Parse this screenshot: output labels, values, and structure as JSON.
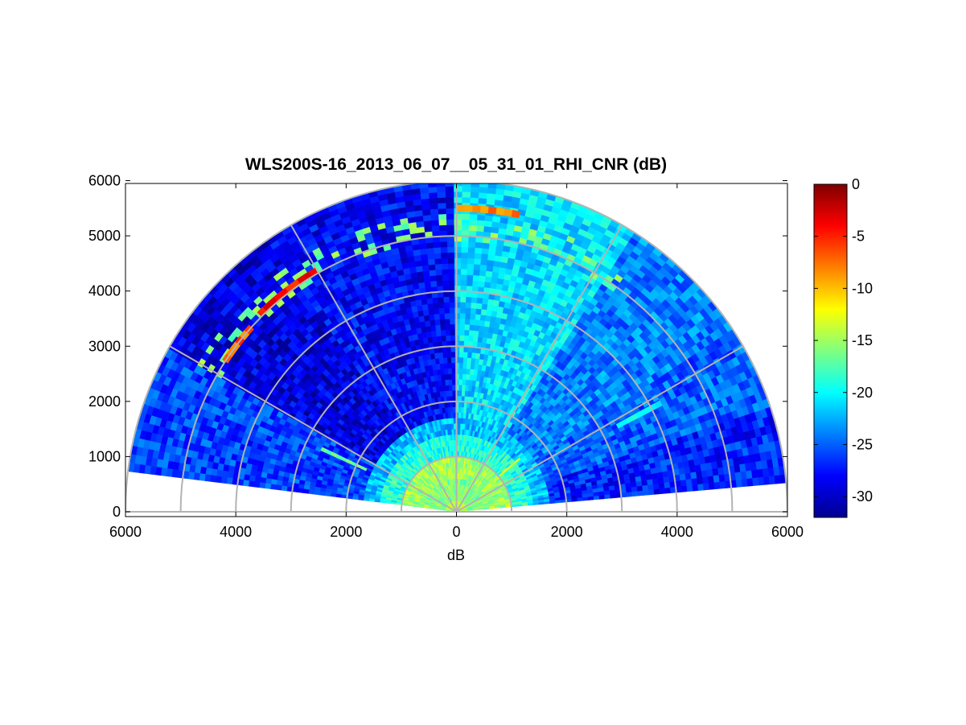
{
  "chart_data": {
    "type": "heatmap",
    "title": "WLS200S-16_2013_06_07__05_31_01_RHI_CNR (dB)",
    "xlabel": "dB",
    "ylabel": "",
    "xlim": [
      -6000,
      6000
    ],
    "ylim": [
      0,
      6000
    ],
    "x_ticks": [
      "6000",
      "4000",
      "2000",
      "0",
      "2000",
      "4000",
      "6000"
    ],
    "x_tick_values": [
      -6000,
      -4000,
      -2000,
      0,
      2000,
      4000,
      6000
    ],
    "y_ticks": [
      "0",
      "1000",
      "2000",
      "3000",
      "4000",
      "5000",
      "6000"
    ],
    "y_tick_values": [
      0,
      1000,
      2000,
      3000,
      4000,
      5000,
      6000
    ],
    "range_max": 6000,
    "range_rings": [
      1000,
      2000,
      3000,
      4000,
      5000,
      6000
    ],
    "spokes_deg": [
      0,
      30,
      60,
      90,
      120,
      150,
      180
    ],
    "elevation_scan_deg": [
      5,
      173
    ],
    "colormap": "jet",
    "colorbar": {
      "min": -32,
      "max": 0,
      "ticks": [
        "0",
        "-5",
        "-10",
        "-15",
        "-20",
        "-25",
        "-30"
      ],
      "tick_values": [
        0,
        -5,
        -10,
        -15,
        -20,
        -25,
        -30
      ]
    },
    "grid": true,
    "sectors": [
      {
        "from_deg": 5,
        "to_deg": 19,
        "cnr_db": -27
      },
      {
        "from_deg": 19,
        "to_deg": 33,
        "cnr_db": -25
      },
      {
        "from_deg": 33,
        "to_deg": 58,
        "cnr_db": -24
      },
      {
        "from_deg": 58,
        "to_deg": 90,
        "cnr_db": -21
      },
      {
        "from_deg": 90,
        "to_deg": 125,
        "cnr_db": -28
      },
      {
        "from_deg": 125,
        "to_deg": 150,
        "cnr_db": -29
      },
      {
        "from_deg": 150,
        "to_deg": 173,
        "cnr_db": -26
      }
    ],
    "near_field": [
      {
        "max_range": 200,
        "cnr_db": -14
      },
      {
        "max_range": 600,
        "cnr_db": -16
      },
      {
        "max_range": 1000,
        "cnr_db": -15
      },
      {
        "max_range": 1350,
        "cnr_db": -19
      },
      {
        "max_range": 1700,
        "cnr_db": -22
      }
    ],
    "cloud_layer": {
      "from_deg": 55,
      "to_deg": 150,
      "min_range": 4950,
      "max_range": 5350,
      "cnr_db": -6
    },
    "band_segments": [
      {
        "from_deg": 78,
        "to_deg": 90,
        "range": 5500,
        "cnr_db": -8
      },
      {
        "from_deg": 120,
        "to_deg": 134,
        "range": 5050,
        "cnr_db": -4
      },
      {
        "from_deg": 138,
        "to_deg": 146,
        "range": 5000,
        "cnr_db": -7
      }
    ],
    "streaks": [
      {
        "angle_deg": 28,
        "from_range": 3300,
        "to_range": 4200,
        "cnr_db": -20
      },
      {
        "angle_deg": 40,
        "from_range": 800,
        "to_range": 1500,
        "cnr_db": -13
      },
      {
        "angle_deg": 155,
        "from_range": 1800,
        "to_range": 2700,
        "cnr_db": -17
      }
    ]
  }
}
